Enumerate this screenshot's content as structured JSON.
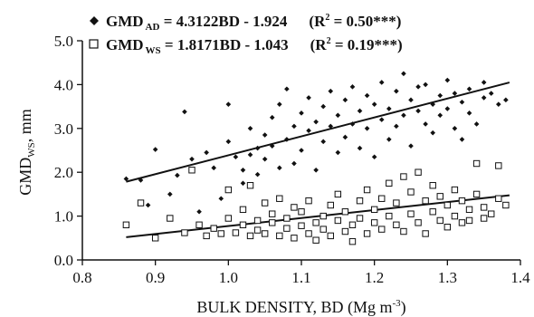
{
  "chart_data": {
    "type": "scatter",
    "xlabel": "BULK DENSITY, BD (Mg m",
    "xlabel_sup": "-3",
    "xlabel_close": ")",
    "ylabel": "GMD",
    "ylabel_sub": "WS",
    "ylabel_unit": ", mm",
    "xlim": [
      0.8,
      1.4
    ],
    "ylim": [
      0.0,
      5.0
    ],
    "x_ticks": [
      "0.8",
      "0.9",
      "1.0",
      "1.1",
      "1.2",
      "1.3",
      "1.4"
    ],
    "y_ticks": [
      "0.0",
      "1.0",
      "2.0",
      "3.0",
      "4.0",
      "5.0"
    ],
    "grid": false,
    "legend_position": "top-left",
    "legend": [
      {
        "marker": "diamond",
        "prefix": "GMD",
        "sub": "AD",
        "equation": " = 4.3122BD - 1.924",
        "r2_open": "(R",
        "r2_sup": "2",
        "r2_value": " = 0.50***)"
      },
      {
        "marker": "open-square",
        "prefix": "GMD",
        "sub": "WS",
        "equation": " = 1.8171BD - 1.043",
        "r2_open": "(R",
        "r2_sup": "2",
        "r2_value": " = 0.19***)"
      }
    ],
    "series": [
      {
        "name": "GMD AD",
        "marker": "diamond",
        "color": "#111111",
        "trend": {
          "slope": 4.3122,
          "intercept": -1.924,
          "x_range": [
            0.86,
            1.385
          ]
        },
        "points": [
          [
            0.86,
            1.85
          ],
          [
            0.88,
            1.82
          ],
          [
            0.89,
            1.25
          ],
          [
            0.9,
            2.52
          ],
          [
            0.92,
            1.5
          ],
          [
            0.93,
            1.93
          ],
          [
            0.94,
            3.38
          ],
          [
            0.95,
            2.3
          ],
          [
            0.96,
            1.1
          ],
          [
            0.97,
            2.45
          ],
          [
            0.98,
            2.1
          ],
          [
            0.99,
            1.4
          ],
          [
            1.0,
            2.7
          ],
          [
            1.0,
            3.55
          ],
          [
            1.01,
            2.35
          ],
          [
            1.02,
            1.75
          ],
          [
            1.02,
            2.05
          ],
          [
            1.03,
            2.4
          ],
          [
            1.03,
            3.0
          ],
          [
            1.04,
            2.55
          ],
          [
            1.04,
            1.95
          ],
          [
            1.05,
            2.85
          ],
          [
            1.05,
            2.3
          ],
          [
            1.06,
            3.25
          ],
          [
            1.06,
            2.6
          ],
          [
            1.07,
            2.1
          ],
          [
            1.07,
            3.55
          ],
          [
            1.08,
            2.75
          ],
          [
            1.08,
            3.9
          ],
          [
            1.09,
            3.05
          ],
          [
            1.09,
            2.2
          ],
          [
            1.1,
            3.35
          ],
          [
            1.1,
            2.5
          ],
          [
            1.11,
            2.95
          ],
          [
            1.11,
            3.7
          ],
          [
            1.12,
            3.15
          ],
          [
            1.12,
            2.05
          ],
          [
            1.13,
            3.5
          ],
          [
            1.13,
            2.7
          ],
          [
            1.14,
            3.05
          ],
          [
            1.14,
            3.85
          ],
          [
            1.15,
            2.45
          ],
          [
            1.15,
            3.3
          ],
          [
            1.16,
            3.65
          ],
          [
            1.16,
            2.8
          ],
          [
            1.17,
            3.1
          ],
          [
            1.17,
            3.95
          ],
          [
            1.18,
            2.55
          ],
          [
            1.18,
            3.4
          ],
          [
            1.19,
            3.75
          ],
          [
            1.19,
            3.0
          ],
          [
            1.2,
            3.55
          ],
          [
            1.2,
            2.35
          ],
          [
            1.21,
            3.2
          ],
          [
            1.21,
            4.05
          ],
          [
            1.22,
            3.45
          ],
          [
            1.22,
            2.75
          ],
          [
            1.23,
            3.85
          ],
          [
            1.23,
            3.05
          ],
          [
            1.24,
            4.25
          ],
          [
            1.24,
            3.3
          ],
          [
            1.25,
            3.65
          ],
          [
            1.25,
            2.6
          ],
          [
            1.26,
            3.95
          ],
          [
            1.26,
            3.4
          ],
          [
            1.27,
            3.1
          ],
          [
            1.27,
            4.0
          ],
          [
            1.28,
            3.55
          ],
          [
            1.28,
            2.9
          ],
          [
            1.29,
            3.75
          ],
          [
            1.29,
            3.3
          ],
          [
            1.3,
            4.1
          ],
          [
            1.3,
            3.45
          ],
          [
            1.31,
            3.0
          ],
          [
            1.31,
            3.8
          ],
          [
            1.32,
            3.6
          ],
          [
            1.32,
            2.75
          ],
          [
            1.33,
            3.9
          ],
          [
            1.33,
            3.35
          ],
          [
            1.34,
            3.1
          ],
          [
            1.35,
            3.7
          ],
          [
            1.35,
            4.05
          ],
          [
            1.36,
            3.8
          ],
          [
            1.37,
            3.55
          ],
          [
            1.38,
            3.65
          ]
        ]
      },
      {
        "name": "GMD WS",
        "marker": "open-square",
        "color": "#111111",
        "trend": {
          "slope": 1.8171,
          "intercept": -1.043,
          "x_range": [
            0.86,
            1.385
          ]
        },
        "points": [
          [
            0.86,
            0.8
          ],
          [
            0.88,
            1.3
          ],
          [
            0.9,
            0.5
          ],
          [
            0.92,
            0.95
          ],
          [
            0.94,
            0.62
          ],
          [
            0.95,
            2.05
          ],
          [
            0.96,
            0.8
          ],
          [
            0.97,
            0.55
          ],
          [
            0.98,
            0.72
          ],
          [
            0.99,
            0.6
          ],
          [
            1.0,
            0.95
          ],
          [
            1.0,
            1.6
          ],
          [
            1.01,
            0.62
          ],
          [
            1.02,
            0.8
          ],
          [
            1.02,
            1.15
          ],
          [
            1.03,
            0.55
          ],
          [
            1.03,
            1.7
          ],
          [
            1.04,
            0.9
          ],
          [
            1.04,
            0.68
          ],
          [
            1.05,
            1.3
          ],
          [
            1.05,
            0.6
          ],
          [
            1.06,
            0.85
          ],
          [
            1.06,
            1.05
          ],
          [
            1.07,
            0.55
          ],
          [
            1.07,
            1.4
          ],
          [
            1.08,
            0.72
          ],
          [
            1.08,
            0.95
          ],
          [
            1.09,
            1.2
          ],
          [
            1.09,
            0.5
          ],
          [
            1.1,
            0.78
          ],
          [
            1.1,
            1.1
          ],
          [
            1.11,
            0.6
          ],
          [
            1.11,
            1.35
          ],
          [
            1.12,
            0.85
          ],
          [
            1.12,
            0.45
          ],
          [
            1.13,
            1.0
          ],
          [
            1.13,
            0.7
          ],
          [
            1.14,
            1.25
          ],
          [
            1.14,
            0.55
          ],
          [
            1.15,
            0.9
          ],
          [
            1.15,
            1.5
          ],
          [
            1.16,
            0.65
          ],
          [
            1.16,
            1.1
          ],
          [
            1.17,
            0.8
          ],
          [
            1.17,
            0.42
          ],
          [
            1.18,
            1.35
          ],
          [
            1.18,
            0.95
          ],
          [
            1.19,
            0.6
          ],
          [
            1.19,
            1.6
          ],
          [
            1.2,
            0.85
          ],
          [
            1.2,
            1.15
          ],
          [
            1.21,
            1.4
          ],
          [
            1.21,
            0.7
          ],
          [
            1.22,
            1.75
          ],
          [
            1.22,
            1.0
          ],
          [
            1.23,
            0.8
          ],
          [
            1.23,
            1.3
          ],
          [
            1.24,
            1.9
          ],
          [
            1.24,
            0.65
          ],
          [
            1.25,
            1.55
          ],
          [
            1.25,
            1.05
          ],
          [
            1.26,
            2.0
          ],
          [
            1.26,
            0.85
          ],
          [
            1.27,
            1.35
          ],
          [
            1.27,
            0.6
          ],
          [
            1.28,
            1.7
          ],
          [
            1.28,
            1.1
          ],
          [
            1.29,
            0.9
          ],
          [
            1.29,
            1.45
          ],
          [
            1.3,
            1.25
          ],
          [
            1.3,
            0.75
          ],
          [
            1.31,
            1.6
          ],
          [
            1.31,
            1.0
          ],
          [
            1.32,
            0.85
          ],
          [
            1.32,
            1.35
          ],
          [
            1.33,
            1.15
          ],
          [
            1.33,
            0.9
          ],
          [
            1.34,
            2.2
          ],
          [
            1.34,
            1.5
          ],
          [
            1.35,
            1.2
          ],
          [
            1.35,
            0.95
          ],
          [
            1.36,
            1.05
          ],
          [
            1.37,
            2.15
          ],
          [
            1.37,
            1.4
          ],
          [
            1.38,
            1.25
          ]
        ]
      }
    ]
  }
}
